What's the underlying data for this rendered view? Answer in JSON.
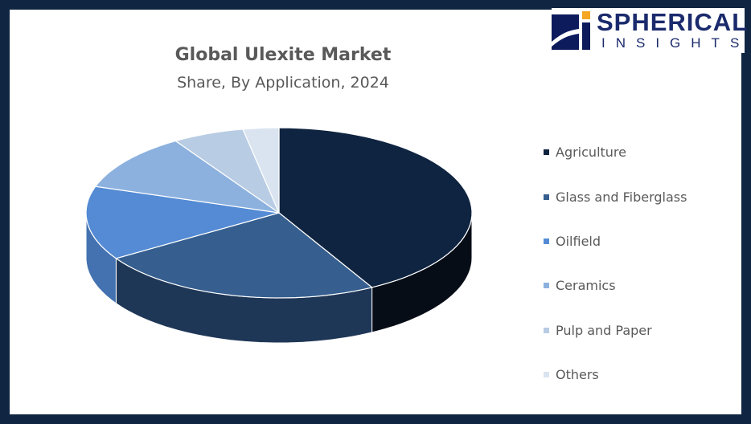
{
  "chart_data": {
    "type": "pie",
    "style": "3d",
    "title": "Global Ulexite Market",
    "subtitle": "Share, By Application, 2024",
    "legend_position": "right",
    "categories": [
      "Agriculture",
      "Glass and Fiberglass",
      "Oilfield",
      "Ceramics",
      "Pulp and Paper",
      "Others"
    ],
    "values": [
      42,
      24,
      14,
      11,
      6,
      3
    ],
    "colors": [
      "#0f2440",
      "#365f8f",
      "#548bd4",
      "#8cb1de",
      "#b8cce4",
      "#dae4f0"
    ],
    "side_colors": [
      "#060d17",
      "#1f3757",
      "#4472b0",
      "#6f94c4",
      "#98acc6",
      "#b6c2d1"
    ]
  },
  "logo": {
    "line1": "SPHERICAL",
    "line2": "INSIGHTS"
  }
}
